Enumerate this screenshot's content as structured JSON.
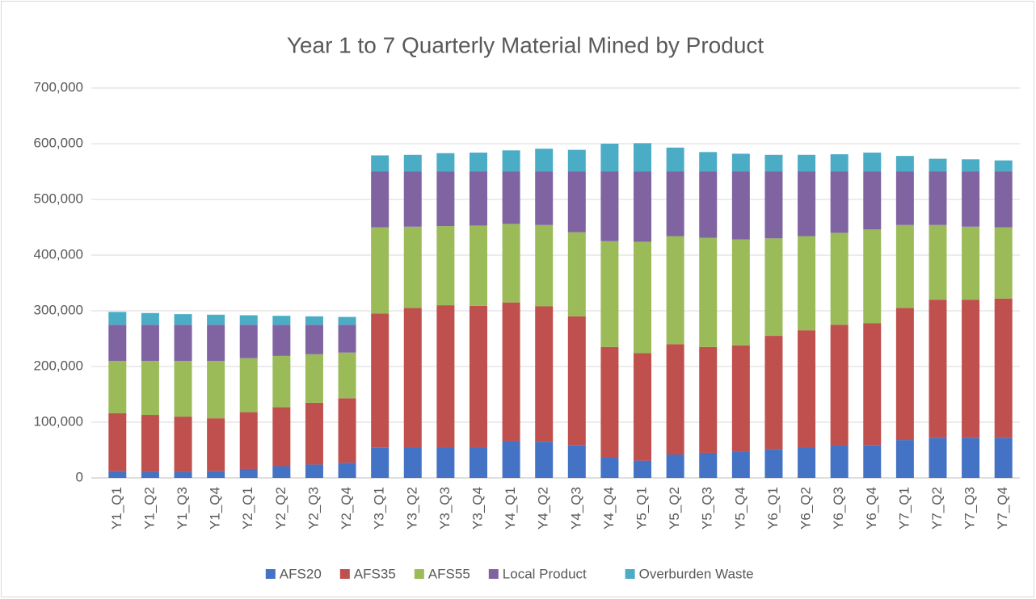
{
  "chart_data": {
    "type": "stacked_bar",
    "title": "Year 1 to 7 Quarterly Material Mined by Product",
    "categories": [
      "Y1_Q1",
      "Y1_Q2",
      "Y1_Q3",
      "Y1_Q4",
      "Y2_Q1",
      "Y2_Q2",
      "Y2_Q3",
      "Y2_Q4",
      "Y3_Q1",
      "Y3_Q2",
      "Y3_Q3",
      "Y3_Q4",
      "Y4_Q1",
      "Y4_Q2",
      "Y4_Q3",
      "Y4_Q4",
      "Y5_Q1",
      "Y5_Q2",
      "Y5_Q3",
      "Y5_Q4",
      "Y6_Q1",
      "Y6_Q2",
      "Y6_Q3",
      "Y6_Q4",
      "Y7_Q1",
      "Y7_Q2",
      "Y7_Q3",
      "Y7_Q4"
    ],
    "series": [
      {
        "name": "AFS20",
        "color": "#4472c4",
        "values": [
          12000,
          11000,
          11000,
          12000,
          16000,
          21000,
          24000,
          27000,
          54000,
          55000,
          55000,
          55000,
          66000,
          65000,
          59000,
          37000,
          31000,
          42000,
          45000,
          47000,
          52000,
          55000,
          58000,
          59000,
          68000,
          72000,
          72000,
          72000
        ]
      },
      {
        "name": "AFS35",
        "color": "#c0504d",
        "values": [
          104000,
          102000,
          99000,
          95000,
          102000,
          106000,
          111000,
          116000,
          241000,
          250000,
          255000,
          254000,
          249000,
          243000,
          231000,
          198000,
          193000,
          198000,
          190000,
          191000,
          203000,
          210000,
          217000,
          219000,
          237000,
          248000,
          248000,
          250000
        ]
      },
      {
        "name": "AFS55",
        "color": "#9bbb59",
        "values": [
          94000,
          97000,
          100000,
          103000,
          97000,
          92000,
          87000,
          82000,
          155000,
          146000,
          142000,
          144000,
          141000,
          146000,
          151000,
          190000,
          200000,
          194000,
          196000,
          190000,
          175000,
          169000,
          165000,
          168000,
          149000,
          134000,
          131000,
          128000
        ]
      },
      {
        "name": "Local Product",
        "color": "#8064a2",
        "values": [
          65000,
          65000,
          65000,
          65000,
          60000,
          56000,
          53000,
          50000,
          100000,
          99000,
          98000,
          97000,
          94000,
          96000,
          109000,
          125000,
          126000,
          116000,
          119000,
          122000,
          120000,
          116000,
          110000,
          104000,
          96000,
          96000,
          99000,
          100000
        ]
      },
      {
        "name": "Overburden Waste",
        "color": "#4bacc6",
        "values": [
          23000,
          21000,
          19000,
          18000,
          17000,
          16000,
          15000,
          14000,
          29000,
          30000,
          33000,
          34000,
          38000,
          41000,
          39000,
          50000,
          51000,
          43000,
          35000,
          32000,
          30000,
          30000,
          31000,
          34000,
          28000,
          23000,
          22000,
          20000
        ]
      }
    ],
    "ylim": [
      0,
      700000
    ],
    "yticks": [
      0,
      {
        "value": 100000,
        "label": "100,000"
      },
      {
        "value": 200000,
        "label": "200,000"
      },
      {
        "value": 300000,
        "label": "300,000"
      },
      {
        "value": 400000,
        "label": "400,000"
      },
      {
        "value": 500000,
        "label": "500,000"
      },
      {
        "value": 600000,
        "label": "600,000"
      },
      {
        "value": 700000,
        "label": "700,000"
      }
    ],
    "grid": true,
    "legend": "bottom"
  }
}
